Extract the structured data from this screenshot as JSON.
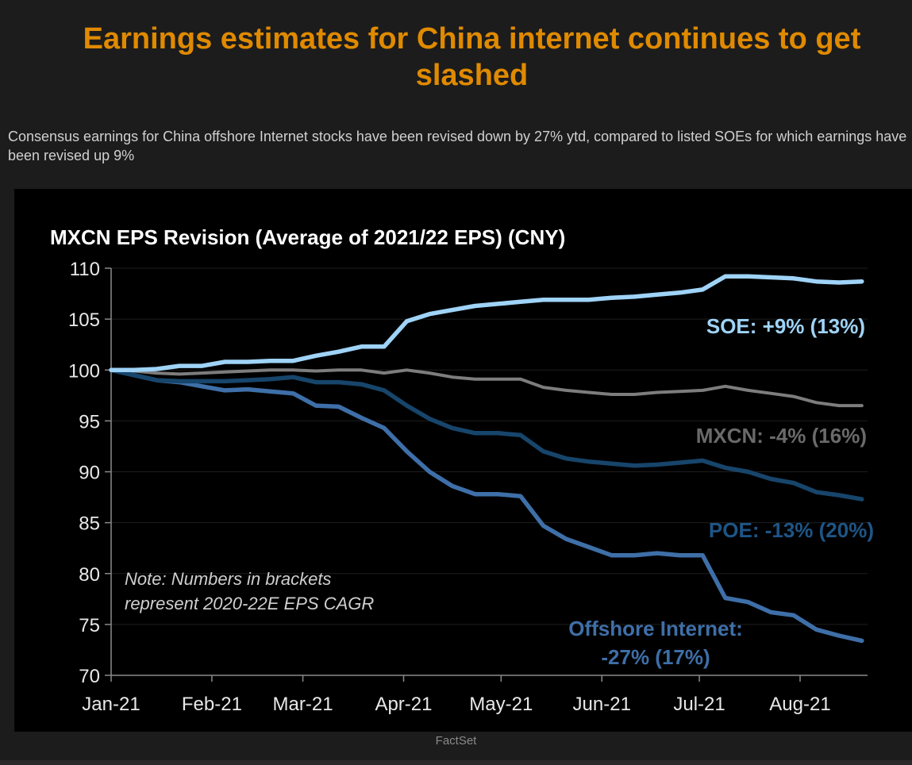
{
  "header": {
    "title": "Earnings estimates for China internet continues to get slashed",
    "subtitle": "Consensus earnings for China offshore Internet stocks have been revised down by 27% ytd, compared to listed SOEs for which earnings have been revised up 9%"
  },
  "source": "FactSet",
  "chart_data": {
    "type": "line",
    "title": "MXCN EPS Revision (Average of 2021/22 EPS) (CNY)",
    "xlabel": "",
    "ylabel": "",
    "ylim": [
      70,
      110
    ],
    "yticks": [
      110,
      105,
      100,
      95,
      90,
      85,
      80,
      75,
      70
    ],
    "xticks": [
      {
        "date": "2021-01-01",
        "label": "Jan-21"
      },
      {
        "date": "2021-02-01",
        "label": "Feb-21"
      },
      {
        "date": "2021-03-01",
        "label": "Mar-21"
      },
      {
        "date": "2021-04-01",
        "label": "Apr-21"
      },
      {
        "date": "2021-05-01",
        "label": "May-21"
      },
      {
        "date": "2021-06-01",
        "label": "Jun-21"
      },
      {
        "date": "2021-07-01",
        "label": "Jul-21"
      },
      {
        "date": "2021-08-01",
        "label": "Aug-21"
      }
    ],
    "grid": true,
    "x": [
      "2021-01-01",
      "2021-01-08",
      "2021-01-15",
      "2021-01-22",
      "2021-01-29",
      "2021-02-05",
      "2021-02-12",
      "2021-02-19",
      "2021-02-26",
      "2021-03-05",
      "2021-03-12",
      "2021-03-19",
      "2021-03-26",
      "2021-04-02",
      "2021-04-09",
      "2021-04-16",
      "2021-04-23",
      "2021-04-30",
      "2021-05-07",
      "2021-05-14",
      "2021-05-21",
      "2021-05-28",
      "2021-06-04",
      "2021-06-11",
      "2021-06-18",
      "2021-06-25",
      "2021-07-02",
      "2021-07-09",
      "2021-07-16",
      "2021-07-23",
      "2021-07-30",
      "2021-08-06",
      "2021-08-13",
      "2021-08-20"
    ],
    "series": [
      {
        "name": "SOE",
        "label": "SOE: +9% (13%)",
        "color": "#9fd3f7",
        "values": [
          100,
          100,
          100.1,
          100.4,
          100.4,
          100.8,
          100.8,
          100.9,
          100.9,
          101.4,
          101.8,
          102.3,
          102.3,
          104.8,
          105.5,
          105.9,
          106.3,
          106.5,
          106.7,
          106.9,
          106.9,
          106.9,
          107.1,
          107.2,
          107.4,
          107.6,
          107.9,
          109.2,
          109.2,
          109.1,
          109.0,
          108.7,
          108.6,
          108.7
        ]
      },
      {
        "name": "MXCN",
        "label": "MXCN: -4% (16%)",
        "color": "#7d7d7d",
        "values": [
          100,
          99.9,
          99.7,
          99.6,
          99.7,
          99.8,
          99.9,
          100,
          100,
          99.9,
          100,
          100,
          99.7,
          100,
          99.7,
          99.3,
          99.1,
          99.1,
          99.1,
          98.3,
          98.0,
          97.8,
          97.6,
          97.6,
          97.8,
          97.9,
          98.0,
          98.4,
          98.0,
          97.7,
          97.4,
          96.8,
          96.5,
          96.5
        ]
      },
      {
        "name": "POE",
        "label": "POE: -13% (20%)",
        "color": "#17456b",
        "values": [
          100,
          99.5,
          99.0,
          98.9,
          98.9,
          98.9,
          99.0,
          99.1,
          99.3,
          98.8,
          98.8,
          98.6,
          98.0,
          96.5,
          95.2,
          94.3,
          93.8,
          93.8,
          93.6,
          92.0,
          91.3,
          91.0,
          90.8,
          90.6,
          90.7,
          90.9,
          91.1,
          90.4,
          90.0,
          89.3,
          88.9,
          88.0,
          87.7,
          87.3
        ]
      },
      {
        "name": "Offshore Internet",
        "label": "Offshore Internet:",
        "label2": "-27% (17%)",
        "color": "#3e6fa8",
        "values": [
          100,
          99.5,
          99.0,
          98.8,
          98.4,
          98.0,
          98.1,
          97.9,
          97.7,
          96.5,
          96.4,
          95.3,
          94.3,
          92.0,
          90.0,
          88.6,
          87.8,
          87.8,
          87.6,
          84.7,
          83.4,
          82.6,
          81.8,
          81.8,
          82.0,
          81.8,
          81.8,
          77.6,
          77.2,
          76.2,
          75.9,
          74.5,
          73.9,
          73.4
        ]
      }
    ],
    "annotations": [
      "Note: Numbers in brackets",
      "represent  2020-22E  EPS CAGR"
    ]
  }
}
